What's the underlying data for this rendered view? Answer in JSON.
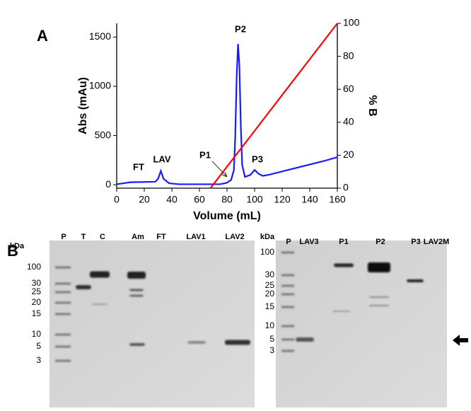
{
  "panel_labels": [
    "A",
    "B"
  ],
  "chart_data": {
    "type": "line",
    "xlabel": "Volume (mL)",
    "ylabel": "Abs (mAu)",
    "y2label": "% B",
    "xlim": [
      0,
      160
    ],
    "xticks": [
      0,
      20,
      40,
      60,
      80,
      100,
      120,
      140,
      160
    ],
    "ylim": [
      -35,
      1640
    ],
    "yticks": [
      0,
      500,
      1000,
      1500
    ],
    "y2lim": [
      0,
      100
    ],
    "y2ticks": [
      0,
      20,
      40,
      60,
      80,
      100
    ],
    "series": [
      {
        "name": "Absorbance",
        "color": "#1a1aff",
        "x": [
          0,
          5,
          10,
          20,
          28,
          30,
          32,
          34,
          38,
          45,
          60,
          75,
          80,
          83,
          85,
          86,
          87,
          88,
          89,
          90,
          91,
          93,
          97,
          100,
          103,
          106,
          110,
          130,
          150,
          160
        ],
        "values": [
          5,
          15,
          25,
          28,
          30,
          60,
          140,
          60,
          15,
          5,
          5,
          5,
          20,
          50,
          150,
          500,
          1100,
          1430,
          1200,
          600,
          200,
          80,
          100,
          150,
          110,
          90,
          100,
          170,
          240,
          280
        ]
      },
      {
        "name": "% B",
        "color": "#ff0000",
        "axis": "y2",
        "x": [
          68,
          160
        ],
        "values": [
          0,
          100
        ]
      }
    ],
    "annotations": [
      "FT",
      "LAV",
      "P1",
      "P2",
      "P3"
    ]
  },
  "gels": [
    {
      "unit": "kDa",
      "lanes": [
        "P",
        "T",
        "C",
        "Am",
        "FT",
        "LAV1",
        "LAV2"
      ],
      "markers": [
        "100",
        "30",
        "25",
        "20",
        "15",
        "10",
        "5",
        "3"
      ]
    },
    {
      "unit": "kDa",
      "lanes": [
        "P",
        "LAV3",
        "P1",
        "P2",
        "P3",
        "LAV2M"
      ],
      "markers": [
        "100",
        "30",
        "25",
        "20",
        "15",
        "10",
        "5",
        "3"
      ]
    }
  ]
}
